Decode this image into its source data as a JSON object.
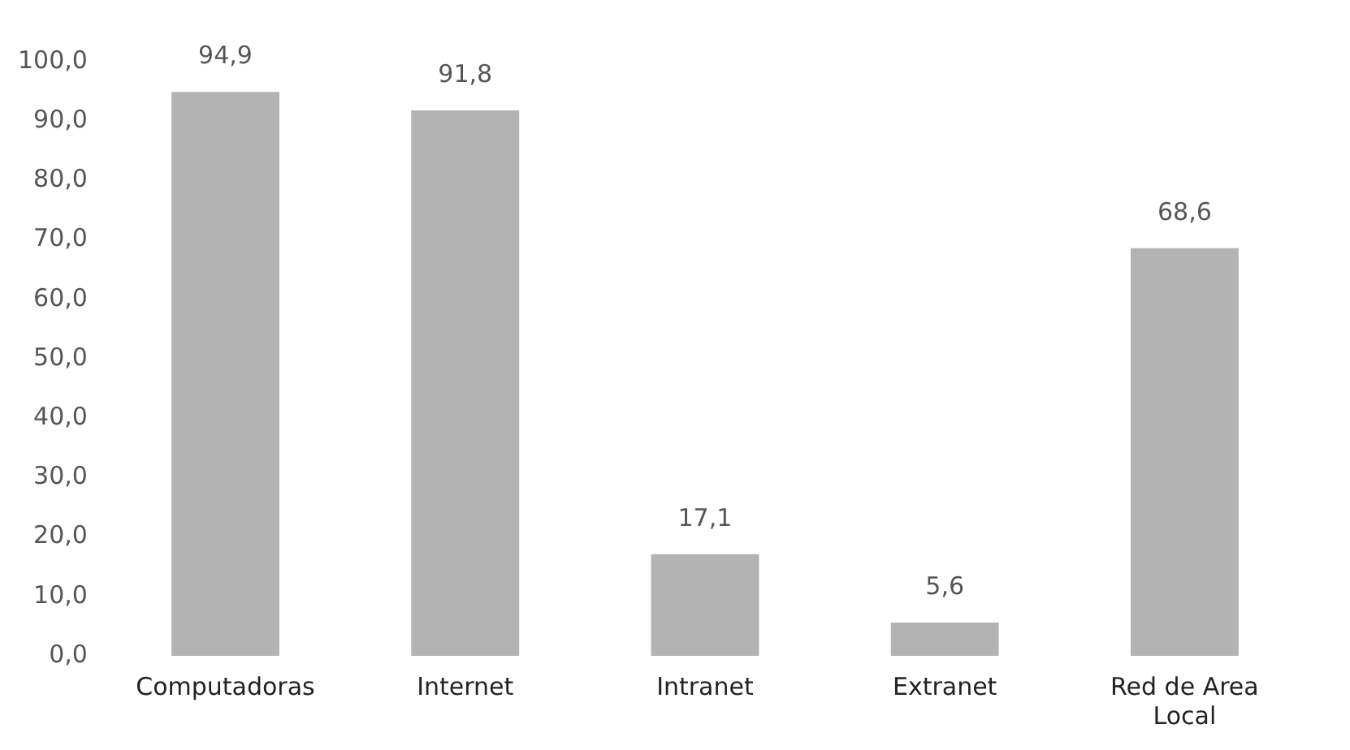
{
  "chart_data": {
    "type": "bar",
    "categories": [
      "Computadoras",
      "Internet",
      "Intranet",
      "Extranet",
      "Red de Area Local"
    ],
    "values": [
      94.9,
      91.8,
      17.1,
      5.6,
      68.6
    ],
    "value_labels": [
      "94,9",
      "91,8",
      "17,1",
      "5,6",
      "68,6"
    ],
    "color": "#b3b3b3",
    "ylim": [
      0,
      100
    ],
    "yticks": [
      {
        "value": 0,
        "label": "0,0"
      },
      {
        "value": 10,
        "label": "10,0"
      },
      {
        "value": 20,
        "label": "20,0"
      },
      {
        "value": 30,
        "label": "30,0"
      },
      {
        "value": 40,
        "label": "40,0"
      },
      {
        "value": 50,
        "label": "50,0"
      },
      {
        "value": 60,
        "label": "60,0"
      },
      {
        "value": 70,
        "label": "70,0"
      },
      {
        "value": 80,
        "label": "80,0"
      },
      {
        "value": 90,
        "label": "90,0"
      },
      {
        "value": 100,
        "label": "100,0"
      }
    ]
  }
}
